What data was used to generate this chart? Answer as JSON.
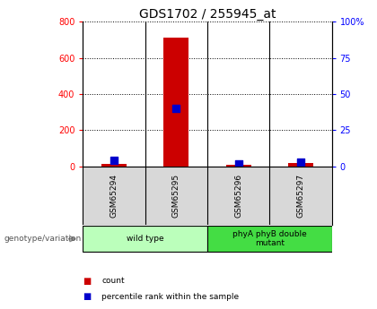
{
  "title": "GDS1702 / 255945_at",
  "samples": [
    "GSM65294",
    "GSM65295",
    "GSM65296",
    "GSM65297"
  ],
  "counts": [
    15,
    710,
    8,
    20
  ],
  "percentile_ranks": [
    4,
    40,
    2,
    3
  ],
  "groups": [
    {
      "label": "wild type",
      "samples": [
        0,
        1
      ],
      "color": "#bbffbb"
    },
    {
      "label": "phyA phyB double\nmutant",
      "samples": [
        2,
        3
      ],
      "color": "#44dd44"
    }
  ],
  "ylim_left": [
    0,
    800
  ],
  "ylim_right": [
    0,
    100
  ],
  "yticks_left": [
    0,
    200,
    400,
    600,
    800
  ],
  "yticks_right": [
    0,
    25,
    50,
    75,
    100
  ],
  "left_tick_labels": [
    "0",
    "200",
    "400",
    "600",
    "800"
  ],
  "right_tick_labels": [
    "0",
    "25",
    "50",
    "75",
    "100%"
  ],
  "bar_color": "#cc0000",
  "dot_color": "#0000cc",
  "bg_color": "#d8d8d8",
  "title_fontsize": 10,
  "axis_tick_fontsize": 7,
  "group_label_text": "genotype/variation",
  "legend_count_label": "count",
  "legend_percentile_label": "percentile rank within the sample"
}
